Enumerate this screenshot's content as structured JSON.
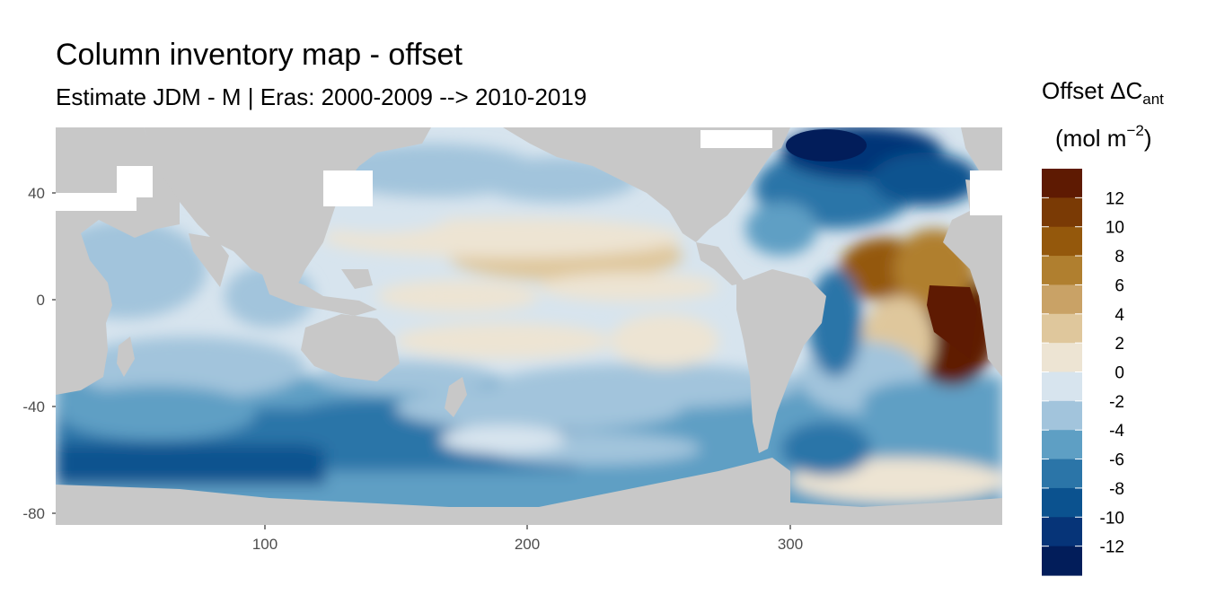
{
  "plot": {
    "title": "Column inventory map - offset",
    "subtitle": "Estimate JDM - M | Eras: 2000-2009 --> 2010-2019"
  },
  "axes": {
    "x_ticks": [
      100,
      200,
      300
    ],
    "y_ticks": [
      40,
      0,
      -40,
      -80
    ],
    "x_range": [
      20,
      380
    ],
    "y_range": [
      -84,
      65
    ]
  },
  "legend": {
    "title_main": "Offset ΔC",
    "title_sub": "ant",
    "unit_prefix": "(mol m",
    "unit_exp": "−2",
    "unit_suffix": ")",
    "labels": [
      "12",
      "10",
      "8",
      "6",
      "4",
      "2",
      "0",
      "-2",
      "-4",
      "-6",
      "-8",
      "-10",
      "-12"
    ],
    "colors": [
      "#5e1a02",
      "#7a3a05",
      "#94580c",
      "#b07f2f",
      "#c9a266",
      "#dfc79c",
      "#ede4d3",
      "#d7e4ee",
      "#a2c4dc",
      "#5e9fc4",
      "#2b75a8",
      "#0b528f",
      "#063478",
      "#021d5a"
    ]
  },
  "map": {
    "land_color": "#c8c8c8",
    "regions": [
      {
        "name": "north-atlantic-strong-negative",
        "x": 315,
        "y": 58,
        "value": -12
      },
      {
        "name": "equatorial-atlantic-strong-positive",
        "x": 360,
        "y": -5,
        "value": 12
      },
      {
        "name": "tropical-atlantic-positive",
        "x": 335,
        "y": 12,
        "value": 8
      },
      {
        "name": "north-pacific-positive",
        "x": 240,
        "y": 15,
        "value": 4
      },
      {
        "name": "southern-ocean-negative",
        "x": 110,
        "y": -55,
        "value": -6
      },
      {
        "name": "south-pacific-negative",
        "x": 230,
        "y": -50,
        "value": -4
      }
    ]
  }
}
